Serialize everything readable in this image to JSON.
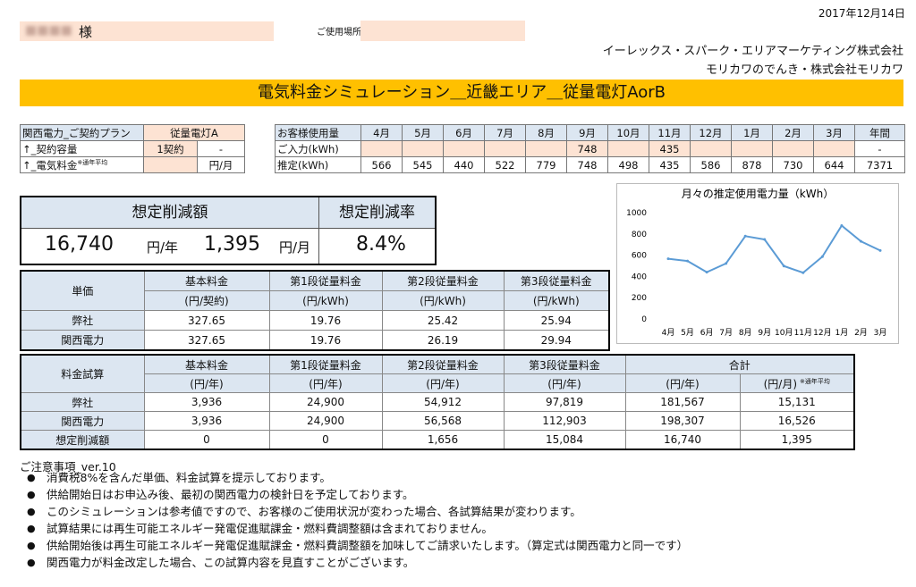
{
  "date": "2017年12月14日",
  "customer": {
    "name_blurred": "■■■■",
    "honorific": "様"
  },
  "location_label": "ご使用場所",
  "companies": [
    "イーレックス・スパーク・エリアマーケティング株式会社",
    "モリカワのでんき・株式会社モリカワ"
  ],
  "title": "電気料金シミュレーション＿近畿エリア＿従量電灯AorB",
  "plan": {
    "rows": [
      {
        "label": "関西電力_ご契約プラン",
        "value": "従量電灯A",
        "unit": ""
      },
      {
        "label": "↑_契約容量",
        "value": "1契約",
        "unit": "-"
      },
      {
        "label": "↑_電気料金",
        "sup": "※通年平均",
        "value": "",
        "unit": "円/月"
      }
    ]
  },
  "usage": {
    "header_label": "お客様使用量",
    "months": [
      "4月",
      "5月",
      "6月",
      "7月",
      "8月",
      "9月",
      "10月",
      "11月",
      "12月",
      "1月",
      "2月",
      "3月",
      "年間"
    ],
    "input_label": "ご入力(kWh)",
    "input": [
      "",
      "",
      "",
      "",
      "",
      "748",
      "",
      "435",
      "",
      "",
      "",
      "",
      "-"
    ],
    "est_label": "推定(kWh)",
    "estimated": [
      "566",
      "545",
      "440",
      "522",
      "779",
      "748",
      "498",
      "435",
      "586",
      "878",
      "730",
      "644",
      "7371"
    ]
  },
  "savings": {
    "amount_header": "想定削減額",
    "rate_header": "想定削減率",
    "yearly": "16,740",
    "yearly_unit": "円/年",
    "monthly": "1,395",
    "monthly_unit": "円/月",
    "rate": "8.4%"
  },
  "rates": {
    "row_header": "単価",
    "columns": [
      {
        "name": "基本料金",
        "unit": "(円/契約)"
      },
      {
        "name": "第1段従量料金",
        "unit": "(円/kWh)"
      },
      {
        "name": "第2段従量料金",
        "unit": "(円/kWh)"
      },
      {
        "name": "第3段従量料金",
        "unit": "(円/kWh)"
      }
    ],
    "rows": [
      {
        "label": "弊社",
        "values": [
          "327.65",
          "19.76",
          "25.42",
          "25.94"
        ]
      },
      {
        "label": "関西電力",
        "values": [
          "327.65",
          "19.76",
          "26.19",
          "29.94"
        ]
      }
    ]
  },
  "simulation": {
    "row_header": "料金試算",
    "columns": [
      {
        "name": "基本料金",
        "unit": "(円/年)"
      },
      {
        "name": "第1段従量料金",
        "unit": "(円/年)"
      },
      {
        "name": "第2段従量料金",
        "unit": "(円/年)"
      },
      {
        "name": "第3段従量料金",
        "unit": "(円/年)"
      }
    ],
    "total_header": "合計",
    "total_units": [
      "(円/年)",
      "(円/月)"
    ],
    "total_sup": "※通年平均",
    "rows": [
      {
        "label": "弊社",
        "values": [
          "3,936",
          "24,900",
          "54,912",
          "97,819",
          "181,567",
          "15,131"
        ]
      },
      {
        "label": "関西電力",
        "values": [
          "3,936",
          "24,900",
          "56,568",
          "112,903",
          "198,307",
          "16,526"
        ]
      },
      {
        "label": "想定削減額",
        "values": [
          "0",
          "0",
          "1,656",
          "15,084",
          "16,740",
          "1,395"
        ]
      }
    ]
  },
  "notes": {
    "heading": "ご注意事項_ver.10",
    "items": [
      "消費税8%を含んだ単価、料金試算を提示しております。",
      "供給開始日はお申込み後、最初の関西電力の検針日を予定しております。",
      "このシミュレーションは参考値ですので、お客様のご使用状況が変わった場合、各試算結果が変わります。",
      "試算結果には再生可能エネルギー発電促進賦課金・燃料費調整額は含まれておりません。",
      "供給開始後は再生可能エネルギー発電促進賦課金・燃料費調整額を加味してご請求いたします。（算定式は関西電力と同一です）",
      "関西電力が料金改定した場合、この試算内容を見直すことがございます。"
    ]
  },
  "chart_data": {
    "type": "line",
    "title": "月々の推定使用電力量（kWh）",
    "categories": [
      "4月",
      "5月",
      "6月",
      "7月",
      "8月",
      "9月",
      "10月",
      "11月",
      "12月",
      "1月",
      "2月",
      "3月"
    ],
    "values": [
      566,
      545,
      440,
      522,
      779,
      748,
      498,
      435,
      586,
      878,
      730,
      644
    ],
    "ylim": [
      0,
      1000
    ],
    "yticks": [
      "0",
      "200",
      "400",
      "600",
      "800",
      "1000"
    ],
    "color": "#5b9bd5",
    "grid": false
  }
}
